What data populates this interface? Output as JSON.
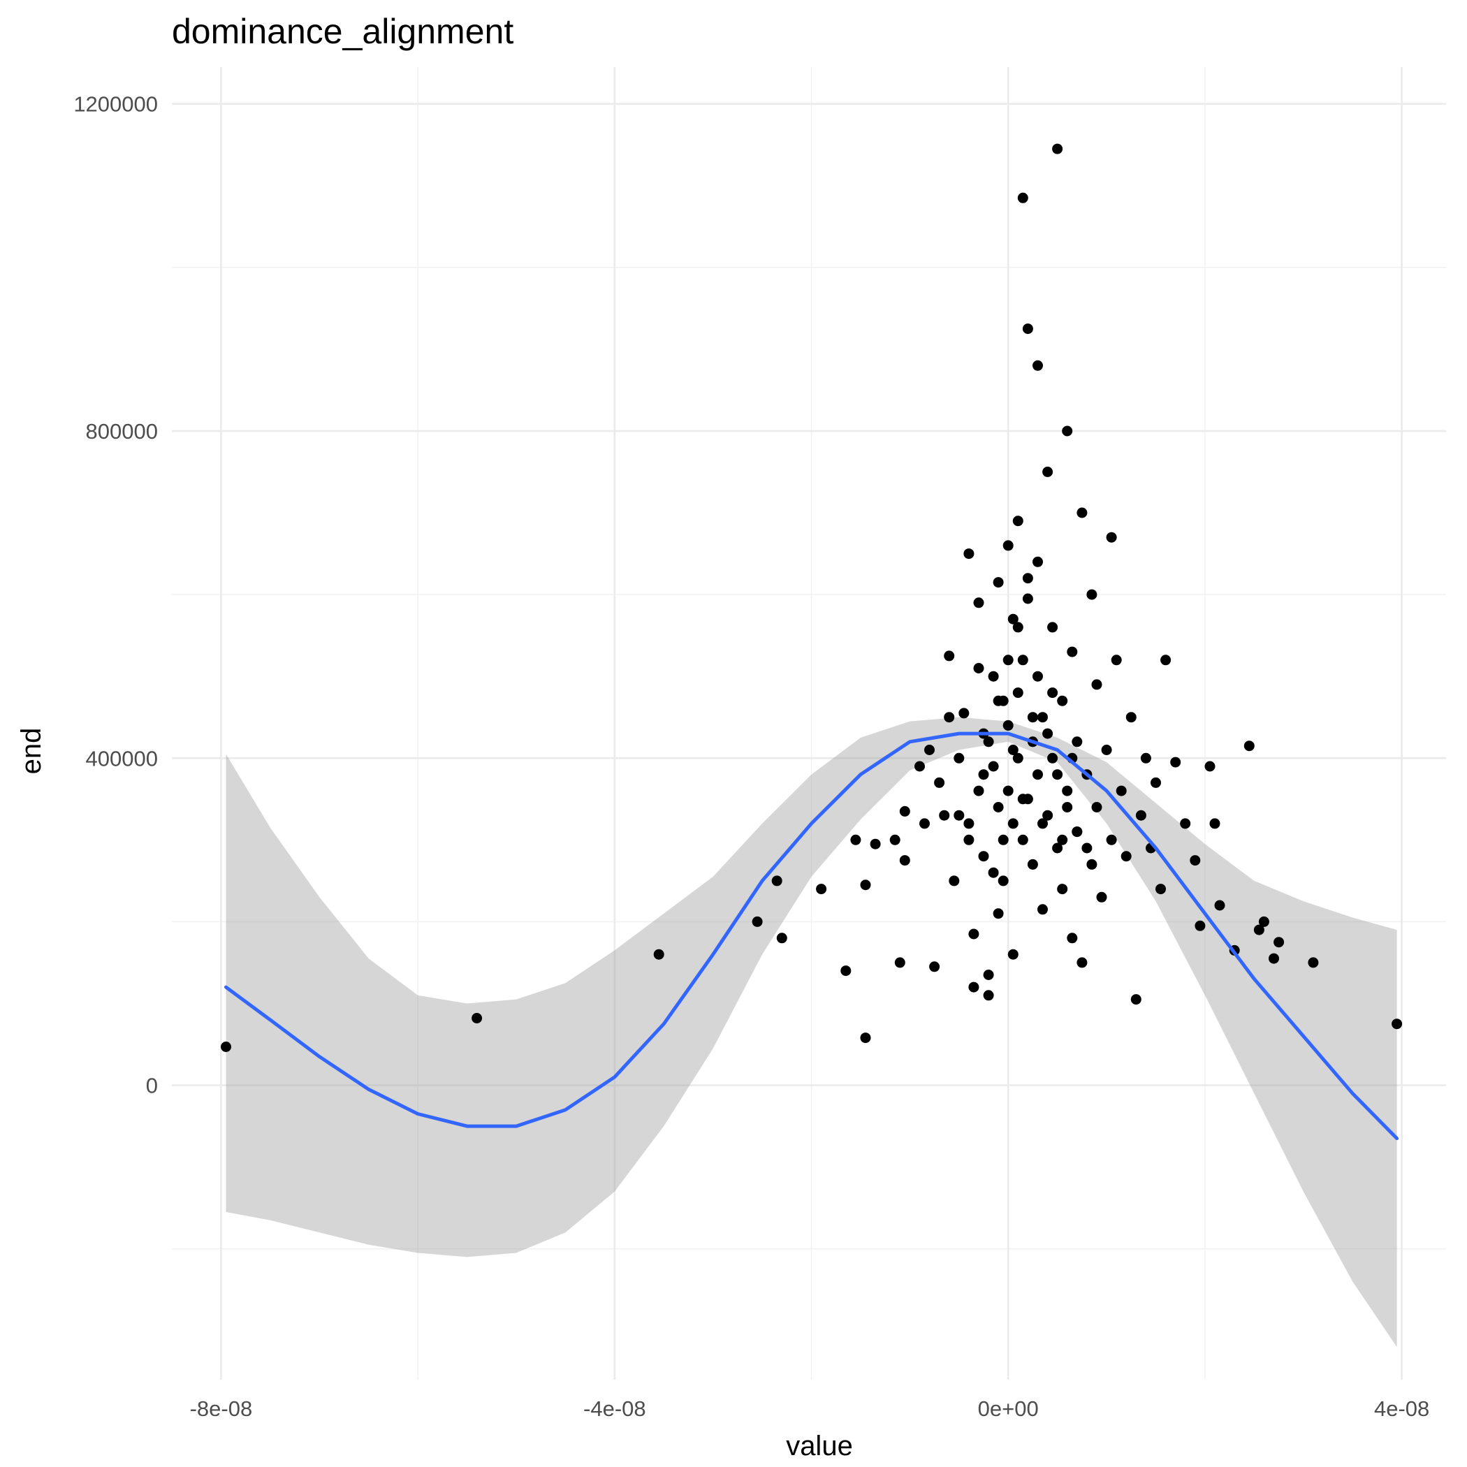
{
  "chart_data": {
    "type": "scatter",
    "title": "dominance_alignment",
    "xlabel": "value",
    "ylabel": "end",
    "xlim": [
      -8.5e-08,
      4.45e-08
    ],
    "ylim": [
      -360000,
      1245000
    ],
    "x_ticks": [
      -8e-08,
      -4e-08,
      0,
      4e-08
    ],
    "x_tick_labels": [
      "-8e-08",
      "-4e-08",
      "0e+00",
      "4e-08"
    ],
    "y_ticks": [
      0,
      400000,
      800000,
      1200000
    ],
    "y_tick_labels": [
      "0",
      "400000",
      "800000",
      "1200000"
    ],
    "grid": true,
    "colors": {
      "points": "#000000",
      "fit_line": "#3366ff",
      "band": "#999999"
    },
    "points": [
      [
        -7.95e-08,
        47000
      ],
      [
        -5.4e-08,
        82000
      ],
      [
        -3.55e-08,
        160000
      ],
      [
        -2.55e-08,
        200000
      ],
      [
        -2.35e-08,
        250000
      ],
      [
        -2.3e-08,
        180000
      ],
      [
        -1.9e-08,
        240000
      ],
      [
        -1.65e-08,
        140000
      ],
      [
        -1.55e-08,
        300000
      ],
      [
        -1.45e-08,
        245000
      ],
      [
        -1.45e-08,
        58000
      ],
      [
        -1.35e-08,
        295000
      ],
      [
        -1.15e-08,
        300000
      ],
      [
        -1.1e-08,
        150000
      ],
      [
        -1.05e-08,
        275000
      ],
      [
        -1.05e-08,
        335000
      ],
      [
        -9e-09,
        390000
      ],
      [
        -8.5e-09,
        320000
      ],
      [
        -8e-09,
        410000
      ],
      [
        -7.5e-09,
        145000
      ],
      [
        -7e-09,
        370000
      ],
      [
        -6.5e-09,
        330000
      ],
      [
        -6e-09,
        525000
      ],
      [
        -5.5e-09,
        250000
      ],
      [
        -5e-09,
        400000
      ],
      [
        -4.5e-09,
        455000
      ],
      [
        -4e-09,
        650000
      ],
      [
        -4e-09,
        320000
      ],
      [
        -3.5e-09,
        185000
      ],
      [
        -3.5e-09,
        120000
      ],
      [
        -3e-09,
        590000
      ],
      [
        -3e-09,
        510000
      ],
      [
        -2.5e-09,
        430000
      ],
      [
        -2.5e-09,
        280000
      ],
      [
        -2e-09,
        110000
      ],
      [
        -2e-09,
        135000
      ],
      [
        -1.5e-09,
        500000
      ],
      [
        -1.5e-09,
        390000
      ],
      [
        -1e-09,
        615000
      ],
      [
        -1e-09,
        340000
      ],
      [
        -1e-09,
        210000
      ],
      [
        -5e-10,
        470000
      ],
      [
        -5e-10,
        300000
      ],
      [
        -5e-10,
        250000
      ],
      [
        0,
        660000
      ],
      [
        0,
        440000
      ],
      [
        0,
        360000
      ],
      [
        5e-10,
        570000
      ],
      [
        5e-10,
        320000
      ],
      [
        5e-10,
        160000
      ],
      [
        1e-09,
        690000
      ],
      [
        1e-09,
        480000
      ],
      [
        1e-09,
        400000
      ],
      [
        1.5e-09,
        520000
      ],
      [
        1.5e-09,
        300000
      ],
      [
        1.5e-09,
        1085000
      ],
      [
        2e-09,
        925000
      ],
      [
        2e-09,
        595000
      ],
      [
        2e-09,
        350000
      ],
      [
        2.5e-09,
        420000
      ],
      [
        2.5e-09,
        270000
      ],
      [
        3e-09,
        640000
      ],
      [
        3e-09,
        880000
      ],
      [
        3e-09,
        380000
      ],
      [
        3.5e-09,
        450000
      ],
      [
        3.5e-09,
        215000
      ],
      [
        4e-09,
        750000
      ],
      [
        4e-09,
        330000
      ],
      [
        4.5e-09,
        560000
      ],
      [
        4.5e-09,
        400000
      ],
      [
        5e-09,
        1145000
      ],
      [
        5e-09,
        290000
      ],
      [
        5.5e-09,
        470000
      ],
      [
        5.5e-09,
        240000
      ],
      [
        6e-09,
        800000
      ],
      [
        6e-09,
        360000
      ],
      [
        6.5e-09,
        530000
      ],
      [
        6.5e-09,
        180000
      ],
      [
        7e-09,
        420000
      ],
      [
        7e-09,
        310000
      ],
      [
        7.5e-09,
        700000
      ],
      [
        7.5e-09,
        150000
      ],
      [
        8e-09,
        380000
      ],
      [
        8.5e-09,
        600000
      ],
      [
        8.5e-09,
        270000
      ],
      [
        9e-09,
        490000
      ],
      [
        9e-09,
        340000
      ],
      [
        9.5e-09,
        230000
      ],
      [
        1e-08,
        410000
      ],
      [
        1.05e-08,
        670000
      ],
      [
        1.05e-08,
        300000
      ],
      [
        1.1e-08,
        520000
      ],
      [
        1.15e-08,
        360000
      ],
      [
        1.2e-08,
        280000
      ],
      [
        1.25e-08,
        450000
      ],
      [
        1.3e-08,
        105000
      ],
      [
        1.35e-08,
        330000
      ],
      [
        1.4e-08,
        400000
      ],
      [
        1.45e-08,
        290000
      ],
      [
        1.5e-08,
        370000
      ],
      [
        1.55e-08,
        240000
      ],
      [
        1.6e-08,
        520000
      ],
      [
        1.7e-08,
        395000
      ],
      [
        1.8e-08,
        320000
      ],
      [
        1.9e-08,
        275000
      ],
      [
        1.95e-08,
        195000
      ],
      [
        2.05e-08,
        390000
      ],
      [
        2.1e-08,
        320000
      ],
      [
        2.15e-08,
        220000
      ],
      [
        2.3e-08,
        165000
      ],
      [
        2.45e-08,
        415000
      ],
      [
        2.55e-08,
        190000
      ],
      [
        2.6e-08,
        200000
      ],
      [
        2.7e-08,
        155000
      ],
      [
        2.75e-08,
        175000
      ],
      [
        3.1e-08,
        150000
      ],
      [
        3.95e-08,
        75000
      ],
      [
        -6e-09,
        450000
      ],
      [
        -4e-09,
        300000
      ],
      [
        -3e-09,
        360000
      ],
      [
        -2e-09,
        420000
      ],
      [
        -1e-09,
        470000
      ],
      [
        0,
        520000
      ],
      [
        1e-09,
        560000
      ],
      [
        2e-09,
        620000
      ],
      [
        3e-09,
        500000
      ],
      [
        4e-09,
        430000
      ],
      [
        5e-09,
        380000
      ],
      [
        6e-09,
        340000
      ],
      [
        7e-09,
        310000
      ],
      [
        8e-09,
        290000
      ],
      [
        -5e-09,
        330000
      ],
      [
        -2.5e-09,
        380000
      ],
      [
        5e-10,
        410000
      ],
      [
        2.5e-09,
        450000
      ],
      [
        4.5e-09,
        480000
      ],
      [
        6.5e-09,
        400000
      ],
      [
        -1.5e-09,
        260000
      ],
      [
        1.5e-09,
        350000
      ],
      [
        3.5e-09,
        320000
      ],
      [
        5.5e-09,
        300000
      ]
    ],
    "fit_line": {
      "x": [
        -7.95e-08,
        -7.5e-08,
        -7e-08,
        -6.5e-08,
        -6e-08,
        -5.5e-08,
        -5e-08,
        -4.5e-08,
        -4e-08,
        -3.5e-08,
        -3e-08,
        -2.5e-08,
        -2e-08,
        -1.5e-08,
        -1e-08,
        -5e-09,
        0,
        5e-09,
        1e-08,
        1.5e-08,
        2e-08,
        2.5e-08,
        3e-08,
        3.5e-08,
        3.95e-08
      ],
      "y": [
        120000,
        80000,
        35000,
        -5000,
        -35000,
        -50000,
        -50000,
        -30000,
        10000,
        75000,
        160000,
        250000,
        320000,
        380000,
        420000,
        430000,
        430000,
        410000,
        360000,
        290000,
        210000,
        130000,
        60000,
        -10000,
        -65000
      ],
      "lower": [
        -155000,
        -165000,
        -180000,
        -195000,
        -205000,
        -210000,
        -205000,
        -180000,
        -130000,
        -50000,
        45000,
        160000,
        255000,
        325000,
        385000,
        410000,
        420000,
        395000,
        320000,
        225000,
        110000,
        -10000,
        -130000,
        -240000,
        -320000
      ],
      "upper": [
        405000,
        315000,
        230000,
        155000,
        110000,
        100000,
        105000,
        125000,
        165000,
        210000,
        255000,
        320000,
        380000,
        425000,
        445000,
        450000,
        445000,
        425000,
        395000,
        345000,
        295000,
        250000,
        225000,
        205000,
        190000
      ]
    }
  }
}
